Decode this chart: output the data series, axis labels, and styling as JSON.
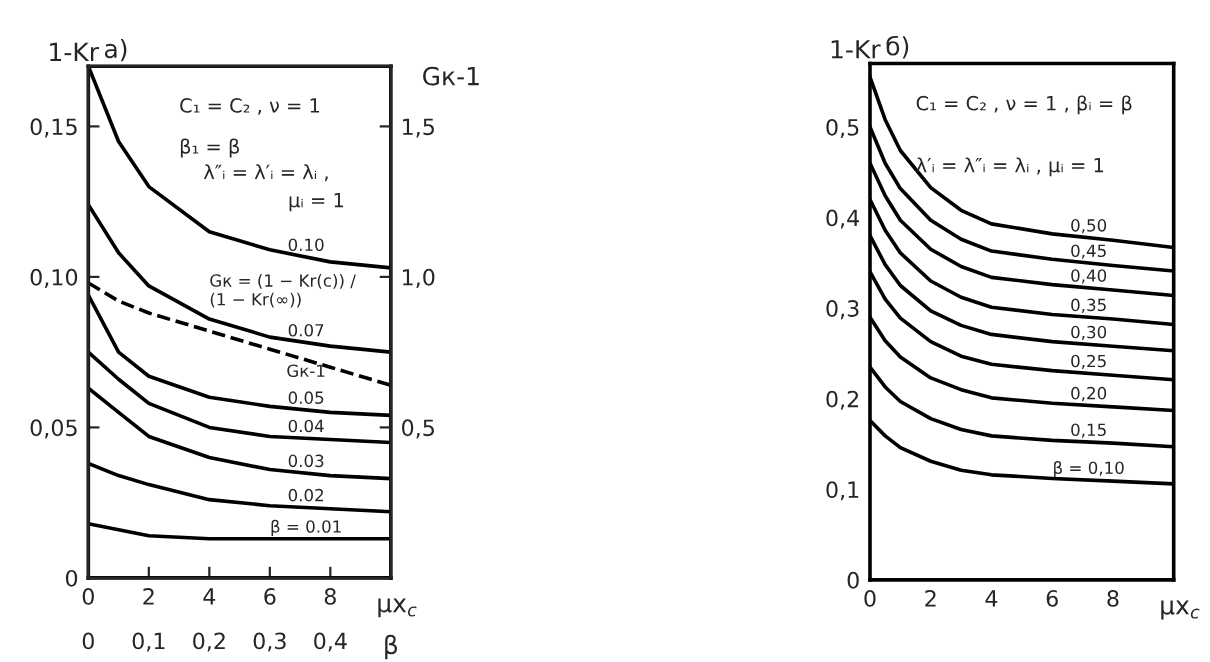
{
  "chart_data": [
    {
      "type": "line",
      "title": "а)",
      "xlabel": "μx$_{c}$",
      "ylabel": "1-Kr",
      "y2label": "Gк-1",
      "x2label": "β",
      "xlim": [
        0,
        10
      ],
      "xticks": [
        0,
        2,
        4,
        6,
        8
      ],
      "ylim": [
        0,
        0.17
      ],
      "yticks": [
        {
          "value": 0,
          "label": "0"
        },
        {
          "value": 0.05,
          "label": "0,05"
        },
        {
          "value": 0.1,
          "label": "0,10"
        },
        {
          "value": 0.15,
          "label": "0,15"
        }
      ],
      "y2lim": [
        0,
        1.7
      ],
      "y2ticks": [
        {
          "value": 0.5,
          "label": "0,5"
        },
        {
          "value": 1.0,
          "label": "1,0"
        },
        {
          "value": 1.5,
          "label": "1,5"
        }
      ],
      "x2lim": [
        0,
        0.5
      ],
      "x2ticks": [
        {
          "value": 0,
          "label": "0"
        },
        {
          "value": 0.1,
          "label": "0,1"
        },
        {
          "value": 0.2,
          "label": "0,2"
        },
        {
          "value": 0.3,
          "label": "0,3"
        },
        {
          "value": 0.4,
          "label": "0,4"
        }
      ],
      "x": [
        0,
        1,
        2,
        4,
        6,
        8,
        10
      ],
      "series": [
        {
          "name": "0.10",
          "color": "#000000",
          "values": [
            0.17,
            0.145,
            0.13,
            0.115,
            0.109,
            0.105,
            0.103
          ]
        },
        {
          "name": "0.07",
          "color": "#000000",
          "values": [
            0.124,
            0.108,
            0.097,
            0.086,
            0.08,
            0.077,
            0.075
          ]
        },
        {
          "name": "Gк-1",
          "color": "#000000",
          "axis": "y2",
          "line_style": "dashed",
          "values": [
            0.98,
            0.92,
            0.88,
            0.82,
            0.76,
            0.7,
            0.64
          ]
        },
        {
          "name": "0.05",
          "color": "#000000",
          "values": [
            0.094,
            0.075,
            0.067,
            0.06,
            0.057,
            0.055,
            0.054
          ]
        },
        {
          "name": "0.04",
          "color": "#000000",
          "values": [
            0.075,
            0.066,
            0.058,
            0.05,
            0.047,
            0.046,
            0.045
          ]
        },
        {
          "name": "0.03",
          "color": "#000000",
          "values": [
            0.063,
            0.055,
            0.047,
            0.04,
            0.036,
            0.034,
            0.033
          ]
        },
        {
          "name": "0.02",
          "color": "#000000",
          "values": [
            0.038,
            0.034,
            0.031,
            0.026,
            0.024,
            0.023,
            0.022
          ]
        },
        {
          "name": "β = 0.01",
          "color": "#000000",
          "values": [
            0.018,
            0.016,
            0.014,
            0.013,
            0.013,
            0.013,
            0.013
          ]
        }
      ],
      "annotations": [
        "C₁ = C₂ , ν = 1",
        "β₁ = β",
        "λ″ᵢ = λ′ᵢ = λᵢ ,",
        "μᵢ = 1",
        "Gк = (1 − Kr(c)) / (1 − Kr(∞))"
      ],
      "grid": false,
      "legend": false,
      "marker": "none",
      "line_style": "solid"
    },
    {
      "type": "line",
      "title": "б)",
      "xlabel": "μx$_{c}$",
      "ylabel": "1-Kr",
      "xlim": [
        0,
        10
      ],
      "xticks": [
        0,
        2,
        4,
        6,
        8
      ],
      "ylim": [
        0,
        0.57
      ],
      "yticks": [
        {
          "value": 0,
          "label": "0"
        },
        {
          "value": 0.1,
          "label": "0,1"
        },
        {
          "value": 0.2,
          "label": "0,2"
        },
        {
          "value": 0.3,
          "label": "0,3"
        },
        {
          "value": 0.4,
          "label": "0,4"
        },
        {
          "value": 0.5,
          "label": "0,5"
        }
      ],
      "x": [
        0,
        0.5,
        1,
        2,
        3,
        4,
        6,
        8,
        10
      ],
      "series": [
        {
          "name": "0,50",
          "color": "#000000",
          "values": [
            0.555,
            0.508,
            0.474,
            0.433,
            0.408,
            0.393,
            0.382,
            0.375,
            0.367
          ]
        },
        {
          "name": "0,45",
          "color": "#000000",
          "values": [
            0.5,
            0.46,
            0.432,
            0.397,
            0.376,
            0.363,
            0.354,
            0.347,
            0.341
          ]
        },
        {
          "name": "0,40",
          "color": "#000000",
          "values": [
            0.46,
            0.424,
            0.397,
            0.365,
            0.346,
            0.334,
            0.326,
            0.32,
            0.314
          ]
        },
        {
          "name": "0,35",
          "color": "#000000",
          "values": [
            0.42,
            0.386,
            0.361,
            0.33,
            0.312,
            0.301,
            0.293,
            0.288,
            0.282
          ]
        },
        {
          "name": "0,30",
          "color": "#000000",
          "values": [
            0.38,
            0.348,
            0.325,
            0.297,
            0.281,
            0.271,
            0.263,
            0.258,
            0.253
          ]
        },
        {
          "name": "0,25",
          "color": "#000000",
          "values": [
            0.34,
            0.31,
            0.289,
            0.263,
            0.247,
            0.238,
            0.231,
            0.226,
            0.221
          ]
        },
        {
          "name": "0,20",
          "color": "#000000",
          "values": [
            0.29,
            0.264,
            0.246,
            0.223,
            0.21,
            0.201,
            0.195,
            0.191,
            0.187
          ]
        },
        {
          "name": "0,15",
          "color": "#000000",
          "values": [
            0.235,
            0.213,
            0.197,
            0.178,
            0.166,
            0.159,
            0.154,
            0.151,
            0.147
          ]
        },
        {
          "name": "β = 0,10",
          "color": "#000000",
          "values": [
            0.176,
            0.159,
            0.146,
            0.131,
            0.121,
            0.116,
            0.112,
            0.109,
            0.106
          ]
        }
      ],
      "annotations": [
        "C₁ = C₂ , ν = 1 , βᵢ = β",
        "λ′ᵢ = λ″ᵢ = λᵢ , μᵢ = 1"
      ],
      "grid": false,
      "legend": false,
      "marker": "none",
      "line_style": "solid"
    }
  ]
}
